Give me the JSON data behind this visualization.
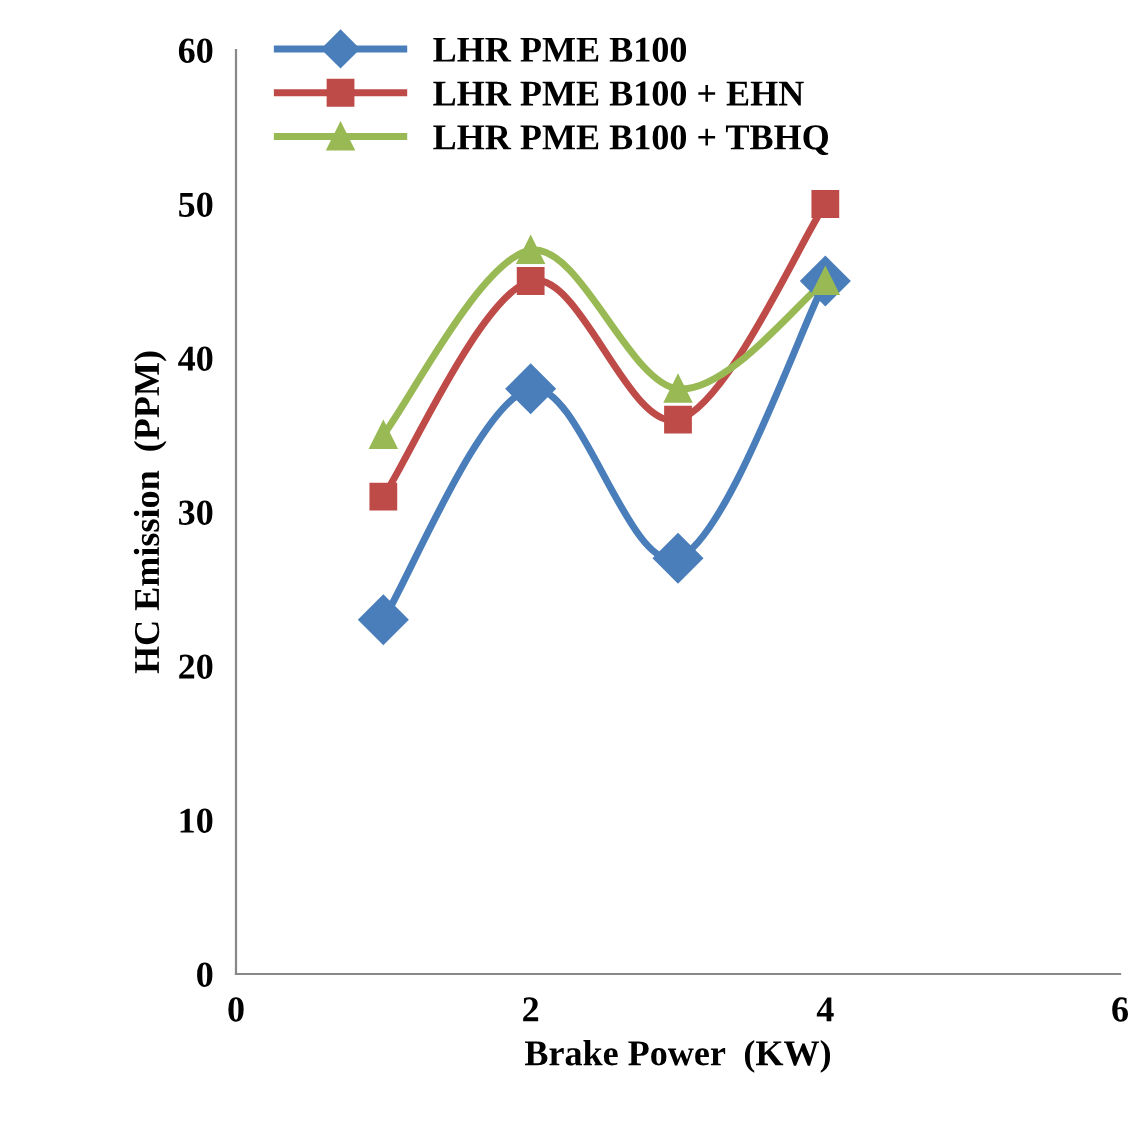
{
  "chart_data": {
    "type": "line",
    "xlabel": "Brake Power  (KW)",
    "ylabel": "HC Emission  (PPM)",
    "x": [
      1,
      2,
      3,
      4
    ],
    "series": [
      {
        "name": "LHR PME B100",
        "color": "#4a7ebb",
        "values": [
          23,
          38,
          27,
          45
        ],
        "marker": "diamond"
      },
      {
        "name": "LHR PME B100 + EHN",
        "color": "#be4b48",
        "values": [
          31,
          45,
          36,
          50
        ],
        "marker": "square"
      },
      {
        "name": "LHR PME B100 + TBHQ",
        "color": "#98b954",
        "values": [
          35,
          47,
          38,
          45
        ],
        "marker": "triangle"
      }
    ],
    "xlim": [
      0,
      6
    ],
    "xticks": [
      0,
      2,
      4,
      6
    ],
    "ylim": [
      0,
      60
    ],
    "yticks": [
      0,
      10,
      20,
      30,
      40,
      50,
      60
    ],
    "grid": false,
    "legend": "top left",
    "line_style": "solid"
  }
}
